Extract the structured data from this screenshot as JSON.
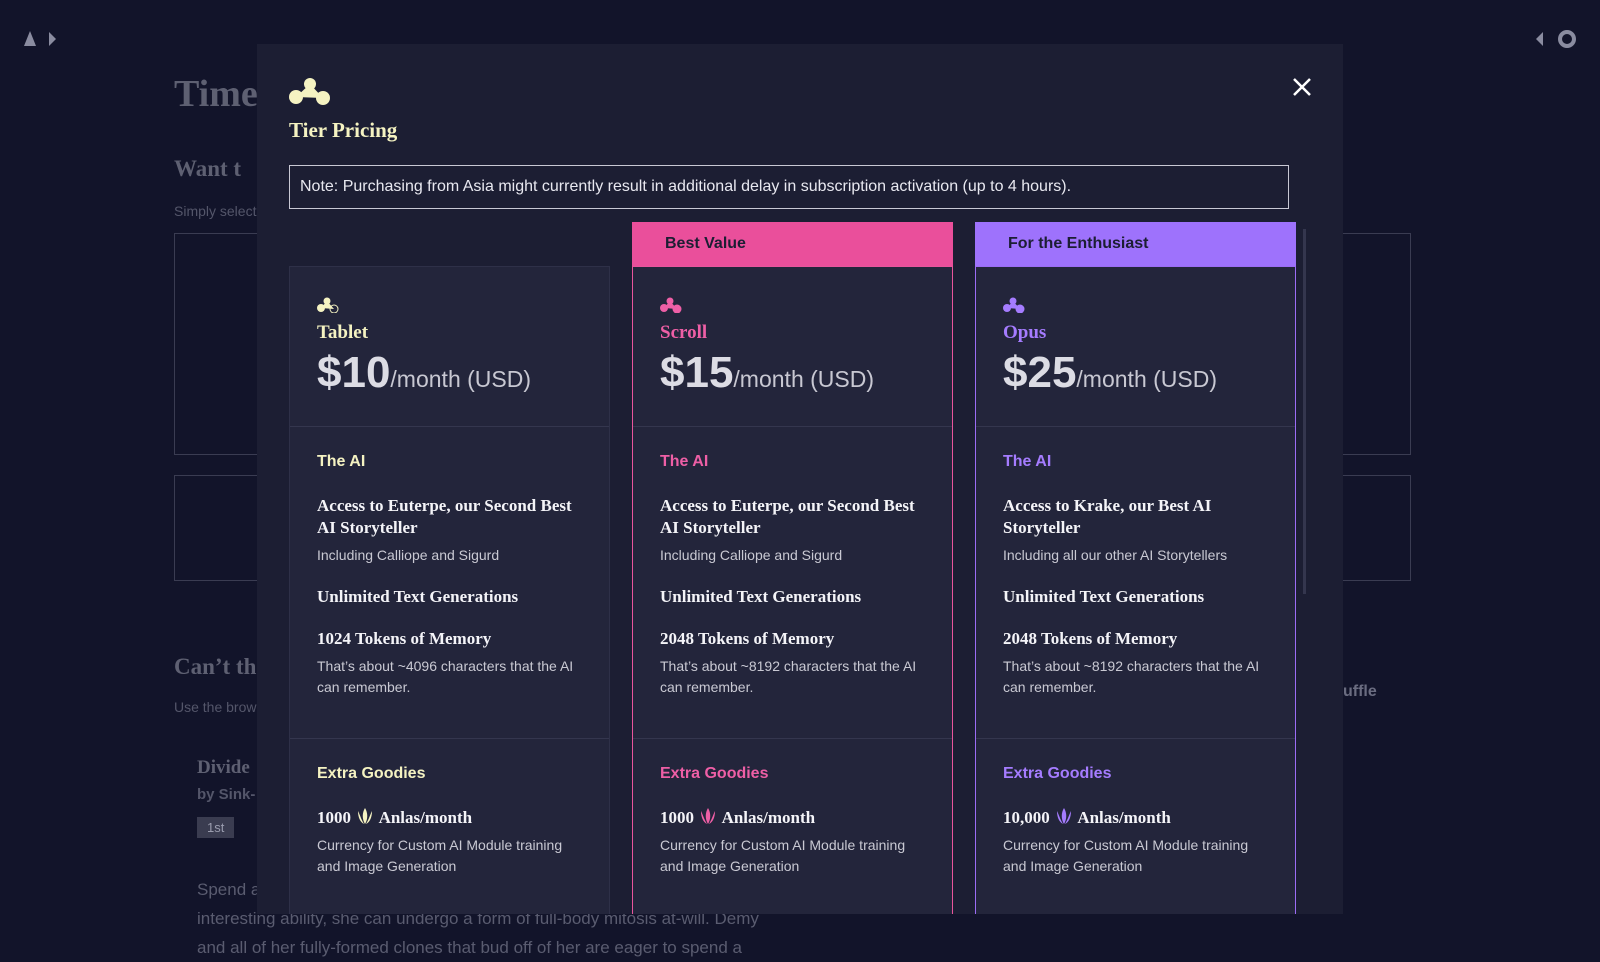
{
  "background": {
    "title": "Time",
    "heading": "Want t",
    "subtext": "Simply select",
    "heading2": "Can’t th",
    "subtext2": "Use the brow",
    "story_title": "Divide",
    "story_author": "by Sink-",
    "tag": "1st",
    "button": "uffle",
    "story_lines": [
      "Spend a",
      "interesting ability, she can undergo a form of full-body mitosis at-will. Demy",
      "and all of her fully-formed clones that bud off of her are eager to spend a"
    ]
  },
  "modal": {
    "title": "Tier Pricing",
    "note": "Note: Purchasing from Asia might currently result in additional delay in subscription activation (up to 4 hours).",
    "tiers": [
      {
        "name": "Tablet",
        "price": "$10",
        "period": "/month (USD)",
        "sections": [
          {
            "heading": "The AI",
            "items": [
              {
                "title": "Access to Euterpe, our Second Best AI Storyteller",
                "desc": "Including Calliope and Sigurd"
              },
              {
                "title": "Unlimited Text Generations"
              },
              {
                "title": "1024 Tokens of Memory",
                "desc": "That’s about ~4096 characters that the AI can remember."
              }
            ]
          },
          {
            "heading": "Extra Goodies",
            "items": [
              {
                "amount": "1000",
                "title": "Anlas/month",
                "desc": "Currency for Custom AI Module training and Image Generation"
              }
            ]
          }
        ]
      },
      {
        "badge": "Best Value",
        "name": "Scroll",
        "price": "$15",
        "period": "/month (USD)",
        "sections": [
          {
            "heading": "The AI",
            "items": [
              {
                "title": "Access to Euterpe, our Second Best AI Storyteller",
                "desc": "Including Calliope and Sigurd"
              },
              {
                "title": "Unlimited Text Generations"
              },
              {
                "title": "2048 Tokens of Memory",
                "desc": "That’s about ~8192 characters that the AI can remember."
              }
            ]
          },
          {
            "heading": "Extra Goodies",
            "items": [
              {
                "amount": "1000",
                "title": "Anlas/month",
                "desc": "Currency for Custom AI Module training and Image Generation"
              }
            ]
          }
        ]
      },
      {
        "badge": "For the Enthusiast",
        "name": "Opus",
        "price": "$25",
        "period": "/month (USD)",
        "sections": [
          {
            "heading": "The AI",
            "items": [
              {
                "title": "Access to Krake, our Best AI Storyteller",
                "desc": "Including all our other AI Storytellers"
              },
              {
                "title": "Unlimited Text Generations"
              },
              {
                "title": "2048 Tokens of Memory",
                "desc": "That’s about ~8192 characters that the AI can remember."
              }
            ]
          },
          {
            "heading": "Extra Goodies",
            "items": [
              {
                "amount": "10,000",
                "title": "Anlas/month",
                "desc": "Currency for Custom AI Module training and Image Generation"
              }
            ]
          }
        ]
      }
    ]
  }
}
